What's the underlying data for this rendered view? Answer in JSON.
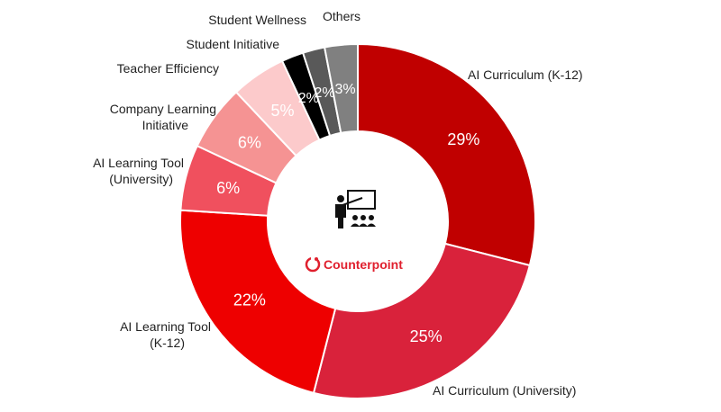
{
  "chart_data": {
    "type": "pie",
    "donut": true,
    "slices": [
      {
        "label": "AI Curriculum (K-12)",
        "value": 29,
        "display": "29%",
        "color": "#C00000"
      },
      {
        "label": "AI Curriculum (University)",
        "value": 25,
        "display": "25%",
        "color": "#D9223B"
      },
      {
        "label": "AI Learning Tool (K-12)",
        "value": 22,
        "display": "22%",
        "color": "#EE0000"
      },
      {
        "label": "AI Learning Tool (University)",
        "value": 6,
        "display": "6%",
        "color": "#F0505E"
      },
      {
        "label": "Company Learning Initiative",
        "value": 6,
        "display": "6%",
        "color": "#F59393"
      },
      {
        "label": "Teacher Efficiency",
        "value": 5,
        "display": "5%",
        "color": "#FCCACB"
      },
      {
        "label": "Student Initiative",
        "value": 2,
        "display": "2%",
        "color": "#000000"
      },
      {
        "label": "Student Wellness",
        "value": 2,
        "display": "2%",
        "color": "#595959"
      },
      {
        "label": "Others",
        "value": 3,
        "display": "3%",
        "color": "#808080"
      }
    ],
    "start_angle_deg": 0,
    "direction": "clockwise"
  },
  "center": {
    "icon": "teacher-presentation-icon",
    "logo_icon": "counterpoint-logo-icon",
    "brand_name": "Counterpoint",
    "brand_color": "#E0202E"
  },
  "labels": {
    "ai_curriculum_k12": "AI Curriculum (K-12)",
    "ai_curriculum_university": "AI Curriculum (University)",
    "ai_learning_tool_k12_line1": "AI Learning Tool",
    "ai_learning_tool_k12_line2": "(K-12)",
    "ai_learning_tool_university_line1": "AI Learning Tool",
    "ai_learning_tool_university_line2": "(University)",
    "company_learning_line1": "Company Learning",
    "company_learning_line2": "Initiative",
    "teacher_efficiency": "Teacher Efficiency",
    "student_initiative": "Student Initiative",
    "student_wellness": "Student Wellness",
    "others": "Others"
  }
}
